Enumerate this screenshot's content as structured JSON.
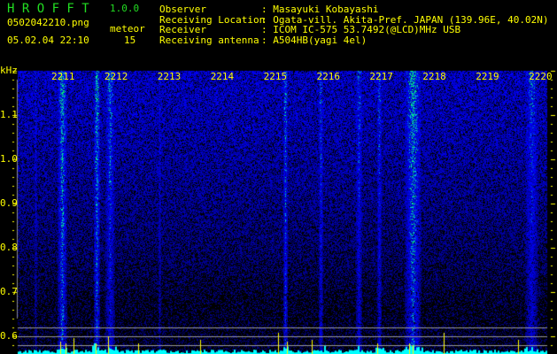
{
  "app": {
    "title": "H R O F F T",
    "version": "1.0.0"
  },
  "file": {
    "name": "0502042210.png",
    "datetime": "05.02.04 22:10"
  },
  "meteor": {
    "label": "meteor",
    "count": "15"
  },
  "info": [
    {
      "label": "Observer",
      "value": ": Masayuki Kobayashi"
    },
    {
      "label": "Receiving Location",
      "value": ": Ogata-vill. Akita-Pref. JAPAN (139.96E, 40.02N)"
    },
    {
      "label": "Receiver",
      "value": ": ICOM IC-575 53.7492(@LCD)MHz USB"
    },
    {
      "label": "Receiving antenna",
      "value": ": A504HB(yagi 4el)"
    }
  ],
  "axis": {
    "unit": "kHz",
    "freq_ticks": [
      "1.1",
      "1.0",
      "0.9",
      "0.8",
      "0.7",
      "0.6"
    ],
    "time_ticks": [
      "2211",
      "2212",
      "2213",
      "2214",
      "2215",
      "2216",
      "2217",
      "2218",
      "2219",
      "2220"
    ]
  },
  "colors": {
    "text": "#ffff00",
    "title": "#22dd22",
    "histogram": "#00ffff",
    "spike": "#ffff00"
  }
}
